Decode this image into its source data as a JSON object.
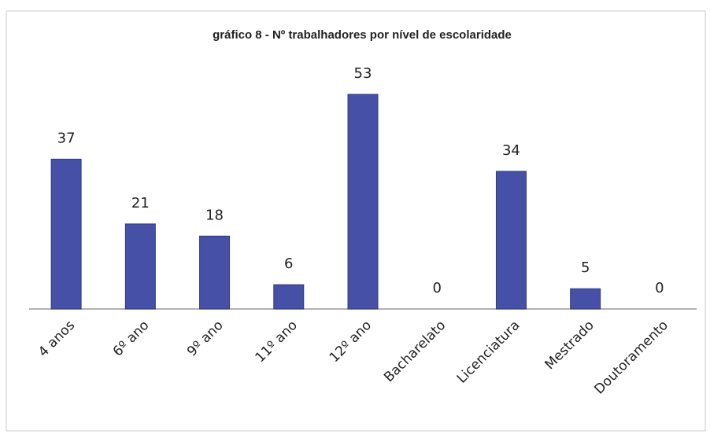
{
  "chart_data": {
    "type": "bar",
    "title": "gráfico 8 - Nº trabalhadores por nível de escolaridade",
    "categories": [
      "4 anos",
      "6º ano",
      "9º ano",
      "11º ano",
      "12º ano",
      "Bacharelato",
      "Licenciatura",
      "Mestrado",
      "Doutoramento"
    ],
    "values": [
      37,
      21,
      18,
      6,
      53,
      0,
      34,
      5,
      0
    ],
    "color": "#4650a6"
  }
}
